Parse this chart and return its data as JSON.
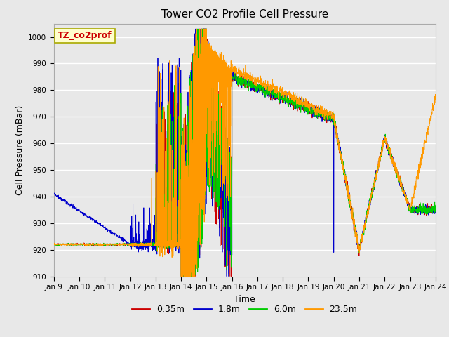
{
  "title": "Tower CO2 Profile Cell Pressure",
  "xlabel": "Time",
  "ylabel": "Cell Pressure (mBar)",
  "ylim": [
    910,
    1005
  ],
  "yticks": [
    910,
    920,
    930,
    940,
    950,
    960,
    970,
    980,
    990,
    1000
  ],
  "x_tick_labels": [
    "Jan 9",
    "Jan 10",
    "Jan 11",
    "Jan 12",
    "Jan 13",
    "Jan 14",
    "Jan 15",
    "Jan 16",
    "Jan 17",
    "Jan 18",
    "Jan 19",
    "Jan 20",
    "Jan 21",
    "Jan 22",
    "Jan 23",
    "Jan 24"
  ],
  "legend_label": "TZ_co2prof",
  "legend_bg": "#ffffcc",
  "legend_border": "#aaaa00",
  "bg_color": "#e8e8e8",
  "plot_bg": "#e8e8e8",
  "grid_color": "#ffffff",
  "series": [
    {
      "label": "0.35m",
      "color": "#cc0000"
    },
    {
      "label": "1.8m",
      "color": "#0000cc"
    },
    {
      "label": "6.0m",
      "color": "#00cc00"
    },
    {
      "label": "23.5m",
      "color": "#ff9900"
    }
  ]
}
